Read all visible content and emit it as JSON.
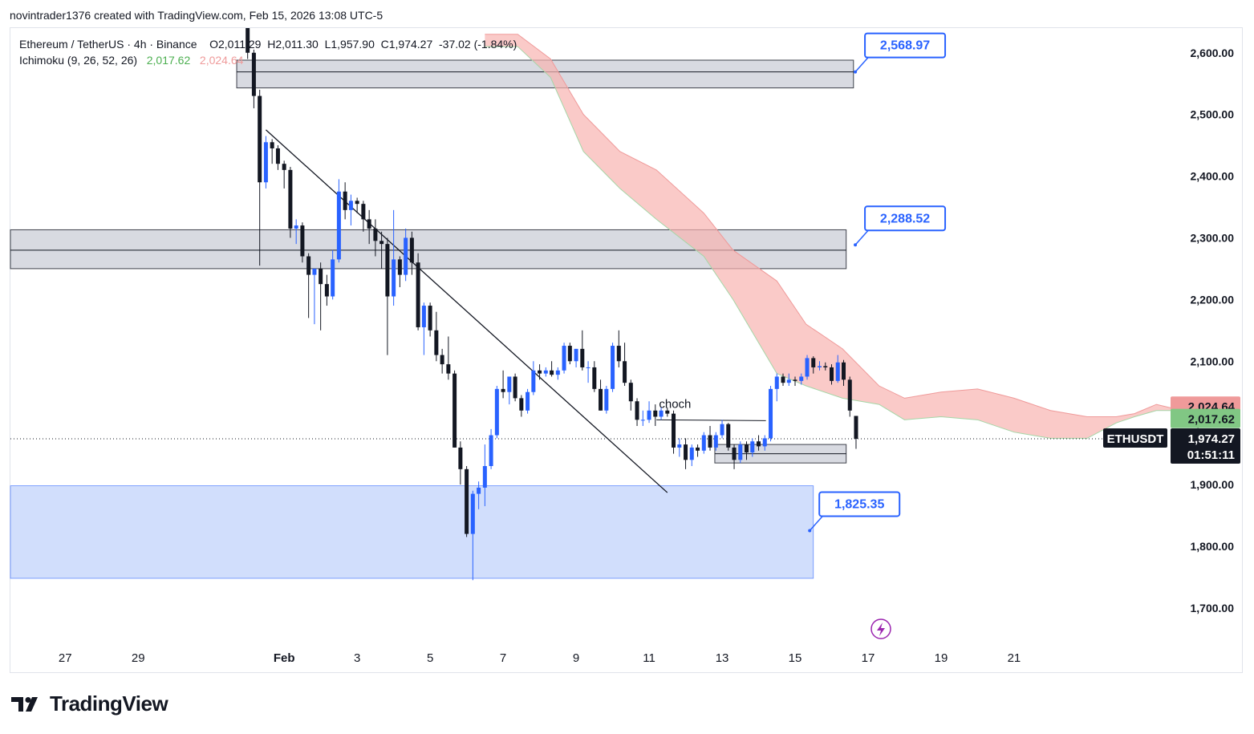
{
  "header": {
    "text": "novintrader1376 created with TradingView.com, Feb 15, 2026 13:08 UTC-5"
  },
  "legend": {
    "symbol_line": "Ethereum / TetherUS · 4h · Binance",
    "ohlc": "O2,011.29  H2,011.30  L1,957.90  C1,974.27  -37.02 (-1.84%)",
    "indicator": "Ichimoku (9, 26, 52, 26)",
    "indicator_val_green": "2,017.62",
    "indicator_val_red": "2,024.64"
  },
  "footer": {
    "brand": "TradingView"
  },
  "colors": {
    "bull": "#2962ff",
    "bear": "#131722",
    "cloud_bear": "#f8b4b0",
    "cloud_bull": "#a5d6a7",
    "zone_gray": "#d1d4dc",
    "zone_blue": "#c5d6fb",
    "callout_border": "#2962ff",
    "callout_text": "#2962ff"
  },
  "chart_data": {
    "type": "candlestick",
    "symbol": "ETHUSDT",
    "timeframe": "4h",
    "x_labels": [
      "27",
      "29",
      "Feb",
      "3",
      "5",
      "7",
      "9",
      "11",
      "13",
      "15",
      "17",
      "19",
      "21"
    ],
    "x_label_days": [
      -5,
      -3,
      1,
      3,
      5,
      7,
      9,
      11,
      13,
      15,
      17,
      19,
      21
    ],
    "y_ticks": [
      1700,
      1800,
      1900,
      2000,
      2100,
      2200,
      2300,
      2400,
      2500,
      2600
    ],
    "y_tick_labels": [
      "1,700.00",
      "1,800.00",
      "1,900.00",
      "2,000.00",
      "2,100.00",
      "2,200.00",
      "2,300.00",
      "2,400.00",
      "2,500.00",
      "2,600.00"
    ],
    "ylim": [
      1640,
      2640
    ],
    "day_range": [
      -6.5,
      25.2
    ],
    "candles": [
      [
        0.0,
        2650,
        2670,
        2590,
        2600
      ],
      [
        0.17,
        2600,
        2605,
        2510,
        2530
      ],
      [
        0.33,
        2530,
        2540,
        2255,
        2390
      ],
      [
        0.5,
        2390,
        2465,
        2380,
        2455
      ],
      [
        0.67,
        2455,
        2460,
        2420,
        2445
      ],
      [
        0.83,
        2445,
        2450,
        2410,
        2420
      ],
      [
        1.0,
        2420,
        2425,
        2380,
        2410
      ],
      [
        1.17,
        2410,
        2415,
        2300,
        2315
      ],
      [
        1.33,
        2315,
        2330,
        2290,
        2320
      ],
      [
        1.5,
        2320,
        2325,
        2260,
        2270
      ],
      [
        1.67,
        2270,
        2275,
        2170,
        2240
      ],
      [
        1.83,
        2240,
        2250,
        2160,
        2250
      ],
      [
        2.0,
        2250,
        2260,
        2150,
        2225
      ],
      [
        2.17,
        2225,
        2240,
        2190,
        2205
      ],
      [
        2.33,
        2205,
        2280,
        2200,
        2265
      ],
      [
        2.5,
        2265,
        2395,
        2260,
        2375
      ],
      [
        2.67,
        2375,
        2390,
        2330,
        2345
      ],
      [
        2.83,
        2345,
        2370,
        2320,
        2360
      ],
      [
        3.0,
        2360,
        2365,
        2340,
        2355
      ],
      [
        3.17,
        2355,
        2360,
        2310,
        2330
      ],
      [
        3.33,
        2330,
        2345,
        2290,
        2315
      ],
      [
        3.5,
        2315,
        2330,
        2270,
        2295
      ],
      [
        3.67,
        2295,
        2310,
        2250,
        2290
      ],
      [
        3.83,
        2290,
        2300,
        2110,
        2205
      ],
      [
        4.0,
        2205,
        2345,
        2190,
        2265
      ],
      [
        4.17,
        2265,
        2270,
        2220,
        2240
      ],
      [
        4.33,
        2240,
        2315,
        2230,
        2300
      ],
      [
        4.5,
        2300,
        2310,
        2240,
        2260
      ],
      [
        4.67,
        2260,
        2275,
        2150,
        2155
      ],
      [
        4.83,
        2155,
        2195,
        2110,
        2190
      ],
      [
        5.0,
        2190,
        2195,
        2140,
        2150
      ],
      [
        5.17,
        2150,
        2180,
        2100,
        2110
      ],
      [
        5.33,
        2110,
        2120,
        2080,
        2095
      ],
      [
        5.5,
        2095,
        2140,
        2070,
        2080
      ],
      [
        5.67,
        2080,
        2085,
        1960,
        1960
      ],
      [
        5.83,
        1960,
        1970,
        1900,
        1925
      ],
      [
        6.0,
        1925,
        1930,
        1815,
        1820
      ],
      [
        6.17,
        1820,
        1890,
        1745,
        1885
      ],
      [
        6.33,
        1885,
        1905,
        1860,
        1895
      ],
      [
        6.5,
        1895,
        1965,
        1865,
        1930
      ],
      [
        6.67,
        1930,
        1990,
        1925,
        1980
      ],
      [
        6.83,
        1980,
        2060,
        1975,
        2055
      ],
      [
        7.0,
        2055,
        2085,
        2040,
        2050
      ],
      [
        7.17,
        2050,
        2075,
        2030,
        2075
      ],
      [
        7.33,
        2075,
        2080,
        2035,
        2040
      ],
      [
        7.5,
        2040,
        2045,
        2010,
        2020
      ],
      [
        7.67,
        2020,
        2055,
        2015,
        2050
      ],
      [
        7.83,
        2050,
        2100,
        2045,
        2085
      ],
      [
        8.0,
        2085,
        2095,
        2070,
        2080
      ],
      [
        8.17,
        2080,
        2090,
        2075,
        2085
      ],
      [
        8.33,
        2085,
        2100,
        2075,
        2078
      ],
      [
        8.5,
        2078,
        2090,
        2070,
        2085
      ],
      [
        8.67,
        2085,
        2130,
        2080,
        2125
      ],
      [
        8.83,
        2125,
        2130,
        2095,
        2100
      ],
      [
        9.0,
        2100,
        2120,
        2090,
        2120
      ],
      [
        9.17,
        2120,
        2150,
        2085,
        2090
      ],
      [
        9.33,
        2090,
        2100,
        2065,
        2090
      ],
      [
        9.5,
        2090,
        2100,
        2050,
        2055
      ],
      [
        9.67,
        2055,
        2070,
        2020,
        2020
      ],
      [
        9.83,
        2020,
        2060,
        2015,
        2055
      ],
      [
        10.0,
        2055,
        2130,
        2050,
        2125
      ],
      [
        10.17,
        2125,
        2150,
        2090,
        2100
      ],
      [
        10.33,
        2100,
        2130,
        2060,
        2065
      ],
      [
        10.5,
        2065,
        2070,
        2020,
        2035
      ],
      [
        10.67,
        2035,
        2040,
        1995,
        2005
      ],
      [
        10.83,
        2005,
        2020,
        1995,
        2005
      ],
      [
        11.0,
        2005,
        2035,
        2000,
        2020
      ],
      [
        11.17,
        2020,
        2030,
        1995,
        2010
      ],
      [
        11.33,
        2010,
        2025,
        2005,
        2020
      ],
      [
        11.5,
        2020,
        2025,
        2010,
        2015
      ],
      [
        11.67,
        2015,
        2020,
        1950,
        1960
      ],
      [
        11.83,
        1960,
        1975,
        1945,
        1965
      ],
      [
        12.0,
        1965,
        1975,
        1925,
        1940
      ],
      [
        12.17,
        1940,
        1965,
        1930,
        1960
      ],
      [
        12.33,
        1960,
        1965,
        1945,
        1955
      ],
      [
        12.5,
        1955,
        1985,
        1950,
        1980
      ],
      [
        12.67,
        1980,
        1995,
        1955,
        1960
      ],
      [
        12.83,
        1960,
        1985,
        1955,
        1980
      ],
      [
        13.0,
        1980,
        2005,
        1975,
        1998
      ],
      [
        13.17,
        1998,
        2000,
        1955,
        1960
      ],
      [
        13.33,
        1960,
        1965,
        1925,
        1940
      ],
      [
        13.5,
        1940,
        1970,
        1935,
        1965
      ],
      [
        13.67,
        1965,
        1970,
        1940,
        1952
      ],
      [
        13.83,
        1952,
        1975,
        1945,
        1970
      ],
      [
        14.0,
        1970,
        1980,
        1955,
        1962
      ],
      [
        14.17,
        1962,
        1980,
        1955,
        1975
      ],
      [
        14.33,
        1975,
        2060,
        1970,
        2055
      ],
      [
        14.5,
        2055,
        2080,
        2035,
        2075
      ],
      [
        14.67,
        2075,
        2080,
        2060,
        2065
      ],
      [
        14.83,
        2065,
        2080,
        2060,
        2070
      ],
      [
        15.0,
        2070,
        2075,
        2060,
        2068
      ],
      [
        15.17,
        2068,
        2080,
        2062,
        2075
      ],
      [
        15.33,
        2075,
        2110,
        2070,
        2105
      ],
      [
        15.5,
        2105,
        2108,
        2080,
        2090
      ],
      [
        15.67,
        2090,
        2100,
        2085,
        2092
      ],
      [
        15.83,
        2092,
        2098,
        2085,
        2090
      ],
      [
        16.0,
        2090,
        2095,
        2062,
        2068
      ],
      [
        16.17,
        2068,
        2110,
        2065,
        2098
      ],
      [
        16.33,
        2098,
        2102,
        2060,
        2070
      ],
      [
        16.5,
        2070,
        2075,
        2010,
        2020
      ],
      [
        16.67,
        2011.29,
        2011.3,
        1957.9,
        1974.27
      ]
    ],
    "cloud_span_a": [
      [
        6.5,
        2630
      ],
      [
        7.4,
        2630
      ],
      [
        8.3,
        2590
      ],
      [
        9.2,
        2500
      ],
      [
        10.2,
        2440
      ],
      [
        11.2,
        2410
      ],
      [
        12.5,
        2340
      ],
      [
        13.3,
        2280
      ],
      [
        14.5,
        2230
      ],
      [
        15.3,
        2160
      ],
      [
        16.3,
        2120
      ],
      [
        17.3,
        2060
      ],
      [
        18.0,
        2040
      ],
      [
        19.0,
        2050
      ],
      [
        20.0,
        2055
      ],
      [
        21.0,
        2040
      ],
      [
        22.0,
        2020
      ],
      [
        23.0,
        2010
      ],
      [
        23.8,
        2010
      ],
      [
        24.3,
        2015
      ],
      [
        24.9,
        2030
      ],
      [
        25.6,
        2020
      ]
    ],
    "cloud_span_b": [
      [
        6.5,
        2610
      ],
      [
        7.4,
        2610
      ],
      [
        8.3,
        2560
      ],
      [
        9.2,
        2440
      ],
      [
        10.2,
        2380
      ],
      [
        11.2,
        2330
      ],
      [
        12.5,
        2270
      ],
      [
        13.3,
        2200
      ],
      [
        14.5,
        2080
      ],
      [
        15.3,
        2060
      ],
      [
        16.3,
        2040
      ],
      [
        17.3,
        2030
      ],
      [
        18.0,
        2005
      ],
      [
        19.0,
        2010
      ],
      [
        20.0,
        2005
      ],
      [
        21.0,
        1985
      ],
      [
        22.0,
        1975
      ],
      [
        23.0,
        1975
      ],
      [
        23.8,
        2000
      ],
      [
        24.3,
        2010
      ],
      [
        24.9,
        2020
      ],
      [
        25.6,
        2020
      ]
    ],
    "zones": [
      {
        "name": "resistance-zone-top",
        "day_from": -0.3,
        "day_to": 16.6,
        "price_low": 2543,
        "price_high": 2588,
        "mid": 2568.97
      },
      {
        "name": "resistance-zone-mid",
        "day_from": -6.5,
        "day_to": 16.4,
        "price_low": 2250,
        "price_high": 2313,
        "mid": 2280
      },
      {
        "name": "support-zone-small",
        "day_from": 12.8,
        "day_to": 16.4,
        "price_low": 1935,
        "price_high": 1965,
        "mid": 1950
      },
      {
        "name": "demand-zone",
        "day_from": -6.5,
        "day_to": 15.5,
        "price_low": 1748,
        "price_high": 1898
      }
    ],
    "callouts": [
      {
        "label": "2,568.97",
        "day": 16.65,
        "price": 2568.97
      },
      {
        "label": "2,288.52",
        "day": 16.65,
        "price": 2288.52
      },
      {
        "label": "1,825.35",
        "day": 15.4,
        "price": 1825.35
      }
    ],
    "trendline": {
      "from_day": 0.5,
      "from_price": 2475,
      "to_day": 11.5,
      "to_price": 1887
    },
    "choch": {
      "label": "choch",
      "from_day": 11.2,
      "to_day": 14.2,
      "price": 2005
    },
    "price_labels": [
      {
        "text": "2,024.64",
        "price": 2024.64,
        "bg": "#ef9a9a",
        "fg": "#131722"
      },
      {
        "text": "2,017.62",
        "price": 2017.62,
        "bg": "#81c784",
        "fg": "#131722"
      }
    ],
    "last_price": {
      "symbol": "ETHUSDT",
      "price_text": "1,974.27",
      "countdown": "01:51:11",
      "price": 1974.27
    }
  }
}
